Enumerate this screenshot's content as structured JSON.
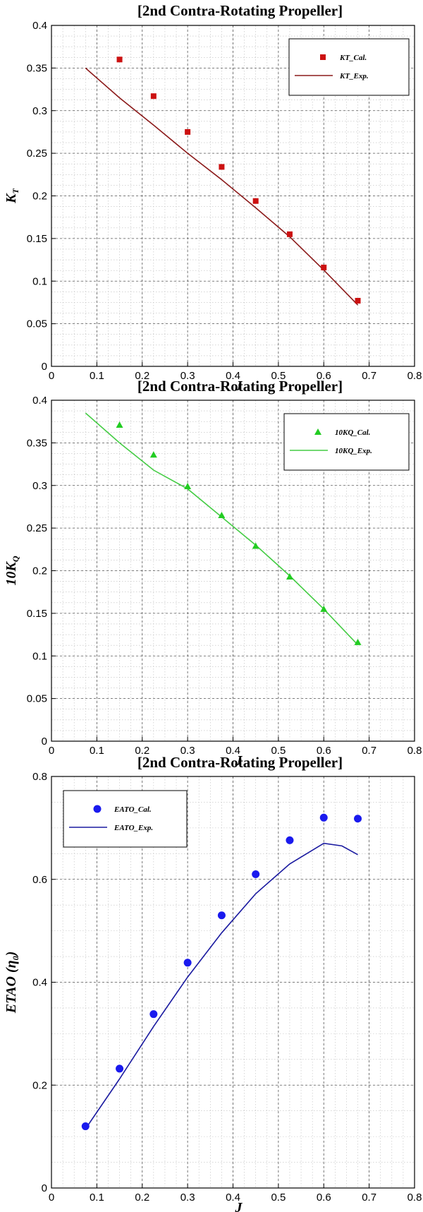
{
  "chart_data": [
    {
      "type": "scatter",
      "title": "[2nd Contra-Rotating Propeller]",
      "xlabel": "J",
      "ylabel": "K",
      "ylabel_sub": "T",
      "xlim": [
        0,
        0.8
      ],
      "ylim": [
        0,
        0.4
      ],
      "xticks": [
        "0",
        "0.1",
        "0.2",
        "0.3",
        "0.4",
        "0.5",
        "0.6",
        "0.7",
        "0.8"
      ],
      "yticks": [
        "0",
        "0.05",
        "0.1",
        "0.15",
        "0.2",
        "0.25",
        "0.3",
        "0.35",
        "0.4"
      ],
      "grid": true,
      "legend_position": "top-right",
      "color": "#cc1111",
      "series": [
        {
          "name": "KT_Cal.",
          "marker": "square",
          "x": [
            0.15,
            0.225,
            0.3,
            0.375,
            0.45,
            0.525,
            0.6,
            0.675
          ],
          "y": [
            0.36,
            0.317,
            0.275,
            0.234,
            0.194,
            0.155,
            0.116,
            0.077
          ]
        },
        {
          "name": "KT_Exp.",
          "style": "line",
          "color": "#8b1a1a",
          "x": [
            0.075,
            0.15,
            0.225,
            0.3,
            0.375,
            0.45,
            0.525,
            0.6,
            0.675
          ],
          "y": [
            0.35,
            0.315,
            0.283,
            0.25,
            0.219,
            0.186,
            0.152,
            0.113,
            0.072
          ]
        }
      ]
    },
    {
      "type": "scatter",
      "title": "[2nd Contra-Rotating Propeller]",
      "xlabel": "J",
      "ylabel": "10K",
      "ylabel_sub": "Q",
      "xlim": [
        0,
        0.8
      ],
      "ylim": [
        0,
        0.4
      ],
      "xticks": [
        "0",
        "0.1",
        "0.2",
        "0.3",
        "0.4",
        "0.5",
        "0.6",
        "0.7",
        "0.8"
      ],
      "yticks": [
        "0",
        "0.05",
        "0.1",
        "0.15",
        "0.2",
        "0.25",
        "0.3",
        "0.35",
        "0.4"
      ],
      "grid": true,
      "legend_position": "top-right",
      "color": "#22cc22",
      "series": [
        {
          "name": "10KQ_Cal.",
          "marker": "triangle",
          "x": [
            0.15,
            0.225,
            0.3,
            0.375,
            0.45,
            0.525,
            0.6,
            0.675
          ],
          "y": [
            0.371,
            0.336,
            0.299,
            0.265,
            0.229,
            0.193,
            0.155,
            0.116
          ]
        },
        {
          "name": "10KQ_Exp.",
          "style": "line",
          "color": "#44cc44",
          "x": [
            0.075,
            0.15,
            0.225,
            0.3,
            0.375,
            0.45,
            0.525,
            0.6,
            0.675
          ],
          "y": [
            0.385,
            0.35,
            0.318,
            0.296,
            0.263,
            0.23,
            0.194,
            0.155,
            0.113
          ]
        }
      ]
    },
    {
      "type": "scatter",
      "title": "[2nd Contra-Rotating Propeller]",
      "xlabel": "J",
      "ylabel": "ETAO (η",
      "ylabel_sub": "0",
      "ylabel_suffix": ")",
      "xlim": [
        0,
        0.8
      ],
      "ylim": [
        0,
        0.8
      ],
      "xticks": [
        "0",
        "0.1",
        "0.2",
        "0.3",
        "0.4",
        "0.5",
        "0.6",
        "0.7",
        "0.8"
      ],
      "yticks": [
        "0",
        "0.2",
        "0.4",
        "0.6",
        "0.8"
      ],
      "grid": true,
      "legend_position": "top-left",
      "color": "#1a1aee",
      "series": [
        {
          "name": "EATO_Cal.",
          "marker": "circle",
          "x": [
            0.075,
            0.15,
            0.225,
            0.3,
            0.375,
            0.45,
            0.525,
            0.6,
            0.675
          ],
          "y": [
            0.12,
            0.232,
            0.338,
            0.438,
            0.53,
            0.61,
            0.676,
            0.72,
            0.718
          ]
        },
        {
          "name": "EATO_Exp.",
          "style": "line",
          "color": "#1a1aa0",
          "x": [
            0.075,
            0.15,
            0.225,
            0.3,
            0.375,
            0.45,
            0.525,
            0.6,
            0.64,
            0.675
          ],
          "y": [
            0.115,
            0.212,
            0.314,
            0.41,
            0.496,
            0.572,
            0.63,
            0.67,
            0.665,
            0.648
          ]
        }
      ]
    }
  ]
}
